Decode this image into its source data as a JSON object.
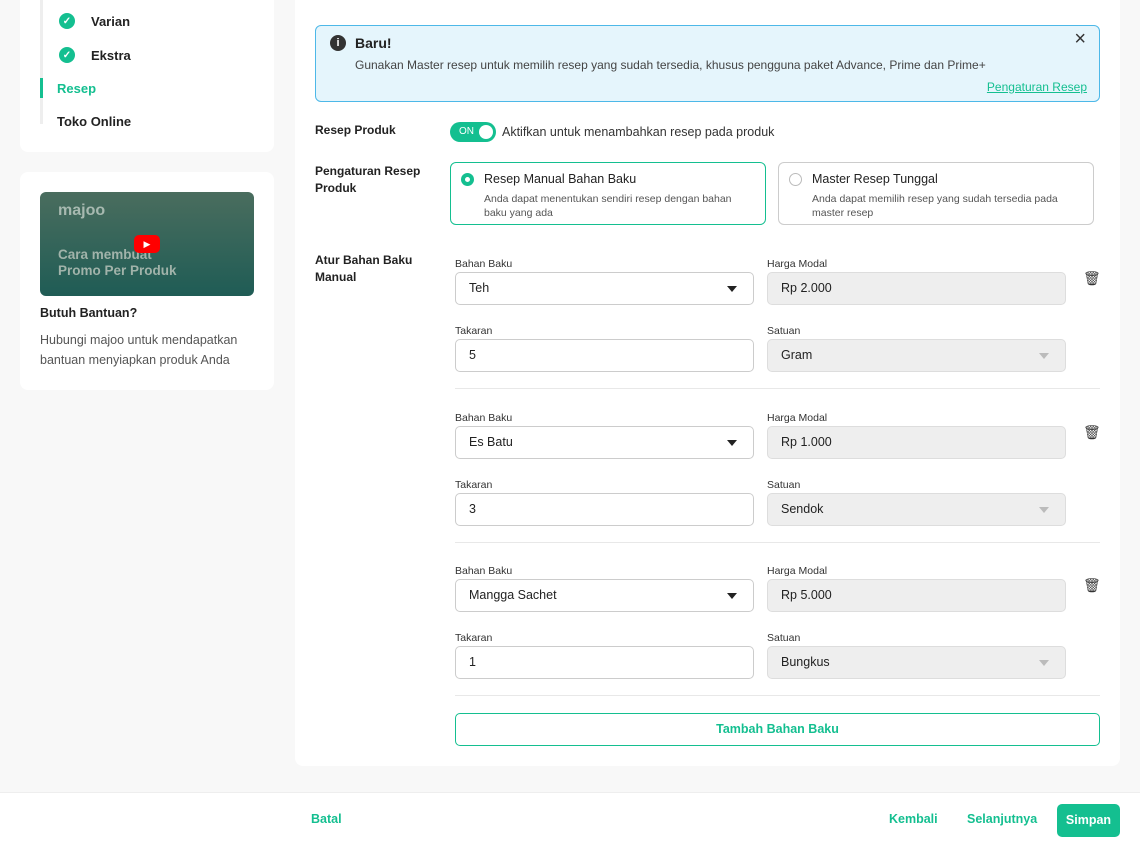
{
  "sidebar": {
    "steps": [
      {
        "label": "Varian",
        "done": true
      },
      {
        "label": "Ekstra",
        "done": true
      },
      {
        "label": "Resep",
        "active": true
      },
      {
        "label": "Toko Online"
      }
    ]
  },
  "help": {
    "video_logo": "majoo",
    "video_title": "Cara membuat Promo Per Produk",
    "title": "Butuh Bantuan?",
    "text": "Hubungi majoo untuk mendapatkan bantuan menyiapkan produk Anda"
  },
  "banner": {
    "title": "Baru!",
    "text": "Gunakan Master resep untuk memilih resep yang sudah tersedia, khusus pengguna paket Advance, Prime dan Prime+",
    "link": "Pengaturan Resep"
  },
  "recipe": {
    "label": "Resep Produk",
    "toggle": "ON",
    "toggle_on": true,
    "toggle_text": "Aktifkan untuk menambahkan resep pada produk"
  },
  "setting": {
    "label": "Pengaturan Resep Produk",
    "options": [
      {
        "title": "Resep Manual Bahan Baku",
        "desc": "Anda dapat menentukan sendiri resep dengan bahan baku yang ada",
        "selected": true
      },
      {
        "title": "Master Resep Tunggal",
        "desc": "Anda dapat memilih resep yang sudah tersedia pada master resep",
        "selected": false
      }
    ]
  },
  "ingredients": {
    "label": "Atur Bahan Baku Manual",
    "field_labels": {
      "bahan": "Bahan Baku",
      "harga": "Harga Modal",
      "takaran": "Takaran",
      "satuan": "Satuan"
    },
    "items": [
      {
        "bahan": "Teh",
        "harga": "Rp 2.000",
        "takaran": "5",
        "satuan": "Gram"
      },
      {
        "bahan": "Es Batu",
        "harga": "Rp 1.000",
        "takaran": "3",
        "satuan": "Sendok"
      },
      {
        "bahan": "Mangga Sachet",
        "harga": "Rp 5.000",
        "takaran": "1",
        "satuan": "Bungkus"
      }
    ],
    "add": "Tambah Bahan Baku"
  },
  "footer": {
    "cancel": "Batal",
    "back": "Kembali",
    "next": "Selanjutnya",
    "save": "Simpan"
  },
  "colors": {
    "accent": "#14bf90",
    "banner_bg": "#e5f5fc",
    "banner_border": "#4db8e8"
  }
}
